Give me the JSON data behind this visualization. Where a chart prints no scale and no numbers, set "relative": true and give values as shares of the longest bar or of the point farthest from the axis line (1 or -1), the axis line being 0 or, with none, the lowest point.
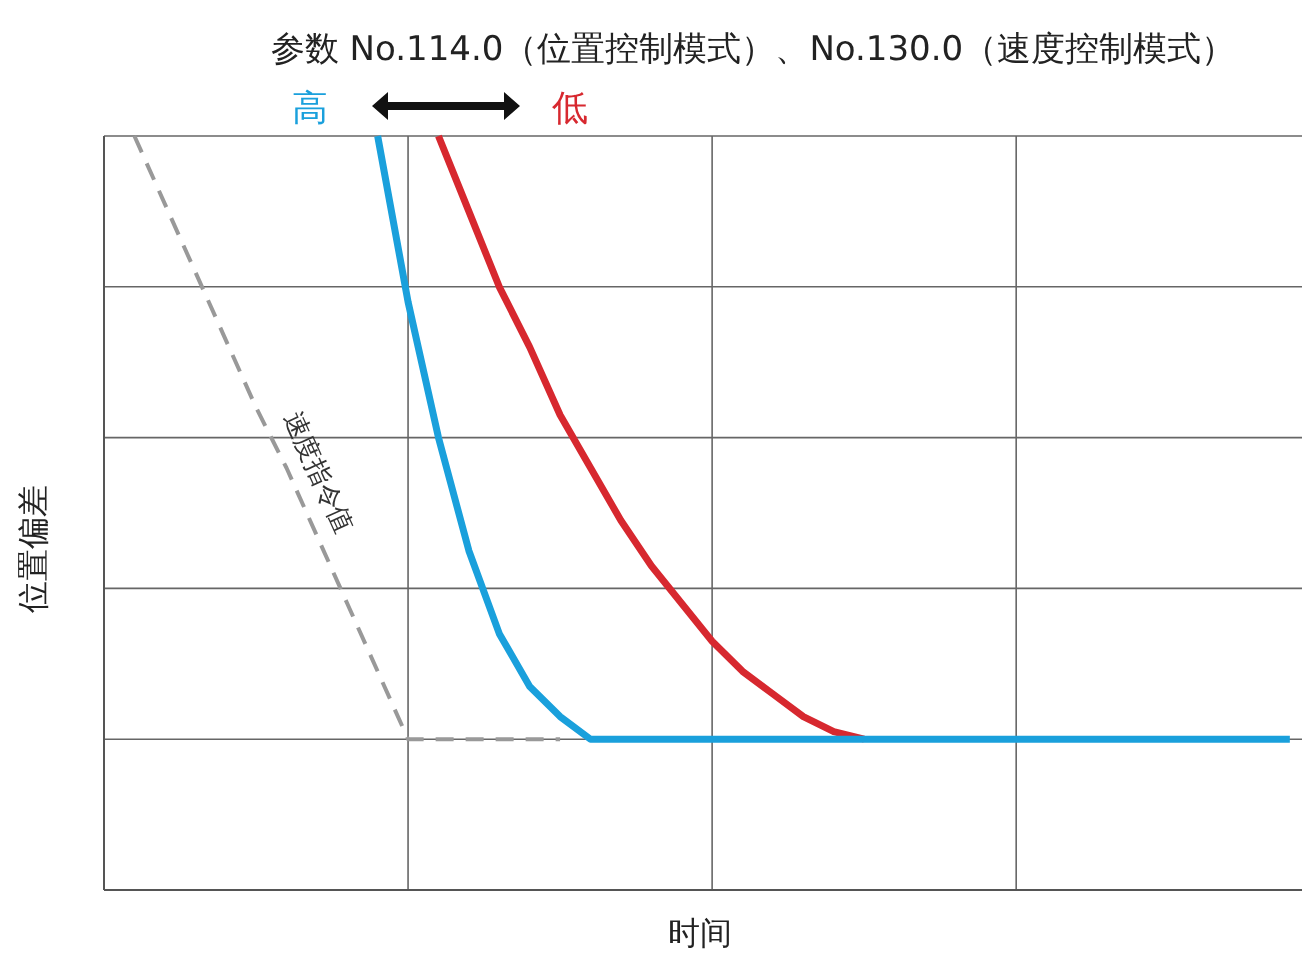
{
  "chart_data": {
    "type": "line",
    "title": "参数 No.114.0（位置控制模式）、No.130.0（速度控制模式）",
    "xlabel": "时间",
    "ylabel": "位置偏差",
    "relative": true,
    "grid": true,
    "marker": "none",
    "categories": [
      null,
      null,
      null,
      null,
      null,
      null,
      null,
      null,
      null,
      null,
      null,
      null,
      null,
      null,
      null,
      null,
      null,
      null,
      null,
      null,
      null,
      null,
      null,
      null,
      null,
      null,
      null,
      null,
      null,
      null,
      null,
      null,
      null,
      null,
      null,
      null,
      null,
      null,
      null,
      null
    ],
    "series": [
      {
        "name": "速度指令值",
        "color": "#999999",
        "line_style": "dashed",
        "values": [
          null,
          1.0,
          0.91,
          0.82,
          0.73,
          0.64,
          0.56,
          0.47,
          0.38,
          0.29,
          0.2,
          0.2,
          0.2,
          0.2,
          0.2,
          0.2,
          null,
          null,
          null,
          null,
          null,
          null,
          null,
          null,
          null,
          null,
          null,
          null,
          null,
          null,
          null,
          null,
          null,
          null,
          null,
          null,
          null,
          null,
          null,
          null
        ]
      },
      {
        "name": "低",
        "color": "#d7282f",
        "line_style": "solid",
        "values": [
          null,
          null,
          null,
          null,
          null,
          null,
          null,
          null,
          null,
          null,
          null,
          1.0,
          0.9,
          0.8,
          0.72,
          0.63,
          0.56,
          0.49,
          0.43,
          0.38,
          0.33,
          0.29,
          0.26,
          0.23,
          0.21,
          0.2,
          null,
          null,
          null,
          null,
          null,
          null,
          null,
          null,
          null,
          null,
          null,
          null,
          null,
          null
        ]
      },
      {
        "name": "高",
        "color": "#1aa0dc",
        "line_style": "solid",
        "values": [
          null,
          null,
          null,
          null,
          null,
          null,
          null,
          null,
          null,
          1.0,
          0.78,
          0.6,
          0.45,
          0.34,
          0.27,
          0.23,
          0.2,
          0.2,
          0.2,
          0.2,
          0.2,
          0.2,
          0.2,
          0.2,
          0.2,
          0.2,
          0.2,
          0.2,
          0.2,
          0.2,
          0.2,
          0.2,
          0.2,
          0.2,
          0.2,
          0.2,
          0.2,
          0.2,
          0.2,
          0.2
        ]
      }
    ]
  }
}
